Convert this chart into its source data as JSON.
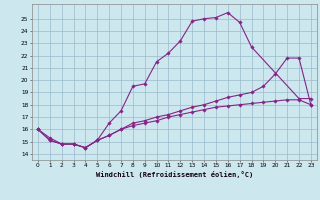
{
  "xlabel": "Windchill (Refroidissement éolien,°C)",
  "bg_color": "#cce8ee",
  "line_color": "#882288",
  "grid_color": "#99bbcc",
  "xlim": [
    -0.5,
    23.5
  ],
  "ylim": [
    13.5,
    26.2
  ],
  "xticks": [
    0,
    1,
    2,
    3,
    4,
    5,
    6,
    7,
    8,
    9,
    10,
    11,
    12,
    13,
    14,
    15,
    16,
    17,
    18,
    19,
    20,
    21,
    22,
    23
  ],
  "yticks": [
    14,
    15,
    16,
    17,
    18,
    19,
    20,
    21,
    22,
    23,
    24,
    25
  ],
  "line1_x": [
    0,
    1,
    2,
    3,
    4,
    5,
    6,
    7,
    8,
    9,
    10,
    11,
    12,
    13,
    14,
    15,
    16,
    17,
    18,
    22,
    23
  ],
  "line1_y": [
    16.0,
    15.1,
    14.8,
    14.8,
    14.5,
    15.1,
    16.5,
    17.5,
    19.5,
    19.7,
    21.5,
    22.2,
    23.2,
    24.8,
    25.0,
    25.1,
    25.5,
    24.7,
    22.7,
    18.5,
    18.5
  ],
  "line2_x": [
    0,
    1,
    2,
    3,
    4,
    5,
    6,
    7,
    8,
    9,
    10,
    11,
    12,
    13,
    14,
    15,
    16,
    17,
    18,
    19,
    20,
    21,
    22,
    23
  ],
  "line2_y": [
    16.0,
    15.3,
    14.8,
    14.8,
    14.5,
    15.1,
    15.5,
    16.0,
    16.5,
    16.7,
    17.0,
    17.2,
    17.5,
    17.8,
    18.0,
    18.3,
    18.6,
    18.8,
    19.0,
    19.5,
    20.5,
    21.8,
    21.8,
    18.0
  ],
  "line3_x": [
    0,
    1,
    2,
    3,
    4,
    5,
    6,
    7,
    8,
    9,
    10,
    11,
    12,
    13,
    14,
    15,
    16,
    17,
    18,
    19,
    20,
    21,
    22,
    23
  ],
  "line3_y": [
    16.0,
    15.1,
    14.8,
    14.8,
    14.5,
    15.1,
    15.5,
    16.0,
    16.3,
    16.5,
    16.7,
    17.0,
    17.2,
    17.4,
    17.6,
    17.8,
    17.9,
    18.0,
    18.1,
    18.2,
    18.3,
    18.4,
    18.4,
    18.0
  ]
}
